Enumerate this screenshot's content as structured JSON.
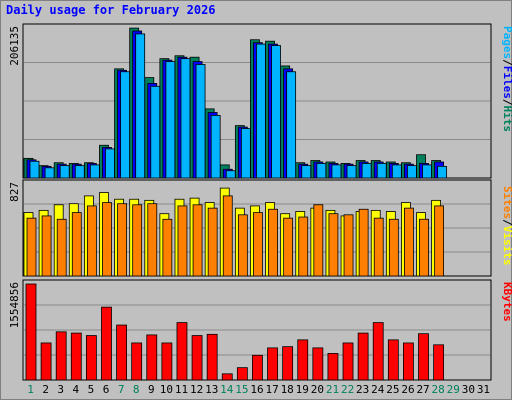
{
  "title": "Daily usage for February 2026",
  "colors": {
    "background": "#c0c0c0",
    "grid": "#8a8a8a",
    "hits": "#00805c",
    "files": "#0000ff",
    "pages": "#00b4ff",
    "visits": "#ffff00",
    "sites": "#ff8000",
    "kbytes": "#ff0000",
    "title": "#0000ff",
    "weekend_day": "#00805c",
    "weekday_day": "#000000"
  },
  "chart_data": [
    {
      "type": "bar",
      "panel": "hits-files-pages",
      "ymax_label": "206135",
      "ylim": [
        0,
        206135
      ],
      "legend": [
        "Pages",
        "/",
        "Files",
        "/",
        "Hits"
      ],
      "categories": [
        "1",
        "2",
        "3",
        "4",
        "5",
        "6",
        "7",
        "8",
        "9",
        "10",
        "11",
        "12",
        "13",
        "14",
        "15",
        "16",
        "17",
        "18",
        "19",
        "20",
        "21",
        "22",
        "23",
        "24",
        "25",
        "26",
        "27",
        "28",
        "29",
        "30",
        "31"
      ],
      "series": [
        {
          "name": "Hits",
          "values": [
            27000,
            17000,
            21000,
            20000,
            21000,
            45000,
            150000,
            206000,
            138000,
            164000,
            168000,
            166000,
            95000,
            18000,
            72000,
            190000,
            188000,
            154000,
            21000,
            24000,
            22000,
            20000,
            24000,
            24000,
            22000,
            21000,
            32000,
            24000,
            0,
            0,
            0
          ]
        },
        {
          "name": "Files",
          "values": [
            25000,
            16000,
            19000,
            19000,
            20000,
            42000,
            148000,
            202000,
            130000,
            162000,
            166000,
            160000,
            90000,
            12000,
            70000,
            186000,
            184000,
            150000,
            19000,
            22000,
            20000,
            19000,
            22000,
            22000,
            20000,
            19000,
            20000,
            22000,
            0,
            0,
            0
          ]
        },
        {
          "name": "Pages",
          "values": [
            23000,
            14000,
            17000,
            17000,
            18000,
            40000,
            146000,
            198000,
            126000,
            160000,
            164000,
            156000,
            86000,
            10000,
            68000,
            184000,
            182000,
            146000,
            17000,
            20000,
            18000,
            17000,
            20000,
            20000,
            18000,
            17000,
            18000,
            16000,
            0,
            0,
            0
          ]
        }
      ]
    },
    {
      "type": "bar",
      "panel": "visits-sites",
      "ymax_label": "827",
      "ylim": [
        0,
        827
      ],
      "legend": [
        "Sites",
        "/",
        "Visits"
      ],
      "categories": [
        "1",
        "2",
        "3",
        "4",
        "5",
        "6",
        "7",
        "8",
        "9",
        "10",
        "11",
        "12",
        "13",
        "14",
        "15",
        "16",
        "17",
        "18",
        "19",
        "20",
        "21",
        "22",
        "23",
        "24",
        "25",
        "26",
        "27",
        "28",
        "29",
        "30",
        "31"
      ],
      "series": [
        {
          "name": "Visits",
          "values": [
            570,
            590,
            640,
            650,
            720,
            750,
            690,
            690,
            680,
            560,
            690,
            700,
            660,
            790,
            610,
            630,
            660,
            560,
            580,
            610,
            590,
            540,
            580,
            590,
            580,
            660,
            570,
            680,
            0,
            0,
            0
          ]
        },
        {
          "name": "Sites",
          "values": [
            520,
            540,
            510,
            570,
            630,
            660,
            650,
            640,
            650,
            510,
            630,
            640,
            610,
            720,
            550,
            570,
            600,
            520,
            530,
            640,
            560,
            550,
            600,
            520,
            510,
            610,
            510,
            630,
            0,
            0,
            0
          ]
        }
      ]
    },
    {
      "type": "bar",
      "panel": "kbytes",
      "ymax_label": "1554856",
      "ylim": [
        0,
        1554856
      ],
      "legend": [
        "KBytes"
      ],
      "categories": [
        "1",
        "2",
        "3",
        "4",
        "5",
        "6",
        "7",
        "8",
        "9",
        "10",
        "11",
        "12",
        "13",
        "14",
        "15",
        "16",
        "17",
        "18",
        "19",
        "20",
        "21",
        "22",
        "23",
        "24",
        "25",
        "26",
        "27",
        "28",
        "29",
        "30",
        "31"
      ],
      "series": [
        {
          "name": "KBytes",
          "values": [
            1554856,
            600000,
            780000,
            760000,
            720000,
            1180000,
            890000,
            600000,
            730000,
            600000,
            930000,
            720000,
            740000,
            100000,
            200000,
            400000,
            520000,
            540000,
            650000,
            520000,
            430000,
            600000,
            760000,
            930000,
            650000,
            600000,
            750000,
            570000,
            0,
            0,
            0
          ]
        }
      ]
    }
  ],
  "days": [
    "1",
    "2",
    "3",
    "4",
    "5",
    "6",
    "7",
    "8",
    "9",
    "10",
    "11",
    "12",
    "13",
    "14",
    "15",
    "16",
    "17",
    "18",
    "19",
    "20",
    "21",
    "22",
    "23",
    "24",
    "25",
    "26",
    "27",
    "28",
    "29",
    "30",
    "31"
  ],
  "weekend_days": [
    "1",
    "7",
    "8",
    "14",
    "15",
    "21",
    "22",
    "28",
    "29"
  ]
}
